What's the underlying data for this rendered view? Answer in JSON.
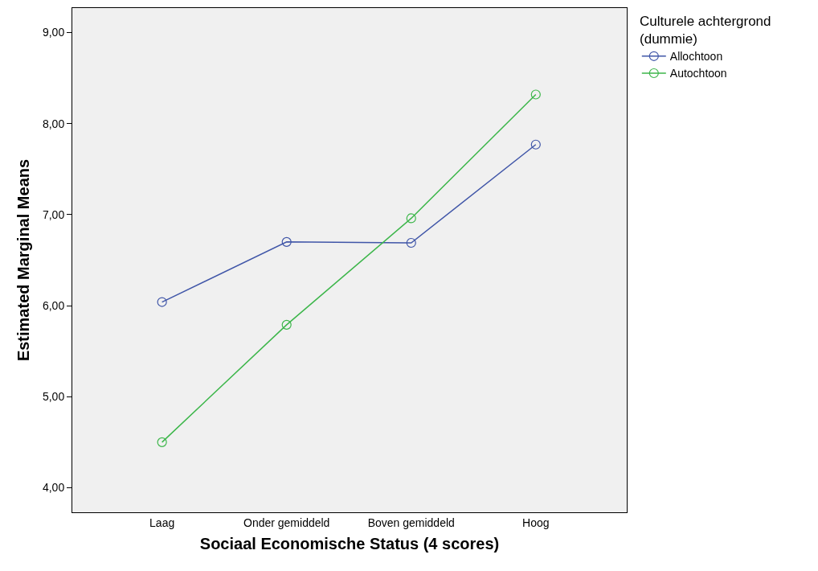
{
  "chart_data": {
    "type": "line",
    "xlabel": "Sociaal Economische Status (4 scores)",
    "ylabel": "Estimated Marginal Means",
    "legend_title": "Culturele achtergrond\n(dummie)",
    "categories": [
      "Laag",
      "Onder gemiddeld",
      "Boven gemiddeld",
      "Hoog"
    ],
    "series": [
      {
        "name": "Allochtoon",
        "color": "#4056a8",
        "values": [
          6.04,
          6.7,
          6.69,
          7.77
        ]
      },
      {
        "name": "Autochtoon",
        "color": "#3cb64a",
        "values": [
          4.5,
          5.79,
          6.96,
          8.32
        ]
      }
    ],
    "ylim": [
      3.73,
      9.27
    ],
    "yticks": [
      {
        "value": 4,
        "label": "4,00"
      },
      {
        "value": 5,
        "label": "5,00"
      },
      {
        "value": 6,
        "label": "6,00"
      },
      {
        "value": 7,
        "label": "7,00"
      },
      {
        "value": 8,
        "label": "8,00"
      },
      {
        "value": 9,
        "label": "9,00"
      }
    ],
    "grid": false,
    "legend": "top right",
    "marker": "circle",
    "line_style": "solid"
  }
}
